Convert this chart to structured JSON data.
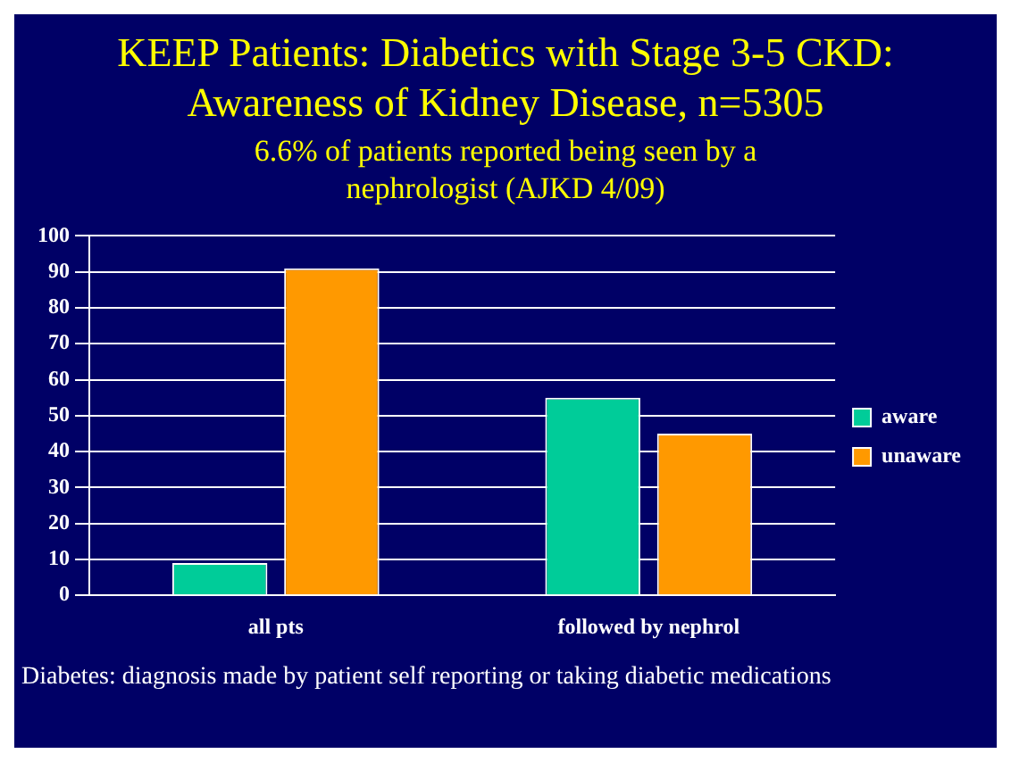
{
  "chart_data": {
    "type": "bar",
    "title": "KEEP Patients: Diabetics with Stage 3-5 CKD: Awareness of Kidney Disease, n=5305",
    "subtitle": "6.6% of patients reported being seen by a nephrologist (AJKD 4/09)",
    "categories": [
      "all pts",
      "followed by nephrol"
    ],
    "series": [
      {
        "name": "aware",
        "color": "#00cc99",
        "values": [
          9,
          55
        ]
      },
      {
        "name": "unaware",
        "color": "#ff9900",
        "values": [
          91,
          45
        ]
      }
    ],
    "ylim": [
      0,
      100
    ],
    "yticks": [
      0,
      10,
      20,
      30,
      40,
      50,
      60,
      70,
      80,
      90,
      100
    ],
    "grid": "y",
    "legend": "right",
    "annotations": [
      "Diabetes: diagnosis made by patient self reporting or taking diabetic medications"
    ]
  }
}
